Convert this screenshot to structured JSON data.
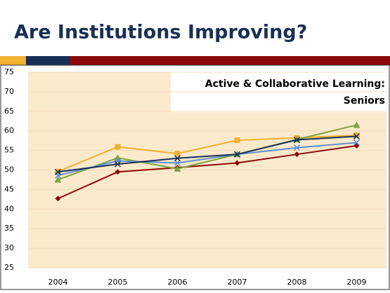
{
  "slide_title": "Are Institutions Improving?",
  "chart_data": {
    "type": "line",
    "title": [
      "Active & Collaborative Learning:",
      "Seniors"
    ],
    "categories": [
      "2004",
      "2005",
      "2006",
      "2007",
      "2008",
      "2009"
    ],
    "series": [
      {
        "color": "#8b0a0a",
        "marker": "diamond",
        "values": [
          42.7,
          49.5,
          50.6,
          51.8,
          54.0,
          56.2
        ]
      },
      {
        "color": "#f0b030",
        "marker": "square",
        "values": [
          49.6,
          55.9,
          54.2,
          57.6,
          58.2,
          58.9
        ]
      },
      {
        "color": "#7aa540",
        "marker": "triangle",
        "values": [
          47.5,
          53.1,
          50.3,
          54.0,
          57.8,
          61.5
        ]
      },
      {
        "color": "#5b8fd0",
        "marker": "cross",
        "values": [
          48.6,
          52.3,
          51.8,
          54.0,
          55.7,
          57.0
        ]
      },
      {
        "color": "#1a2f55",
        "marker": "cross",
        "values": [
          49.5,
          51.5,
          53.0,
          54.0,
          57.7,
          58.6
        ]
      }
    ],
    "ylim": [
      25,
      75
    ],
    "yticks": [
      25,
      30,
      35,
      40,
      45,
      50,
      55,
      60,
      65,
      70,
      75
    ],
    "grid": true
  }
}
